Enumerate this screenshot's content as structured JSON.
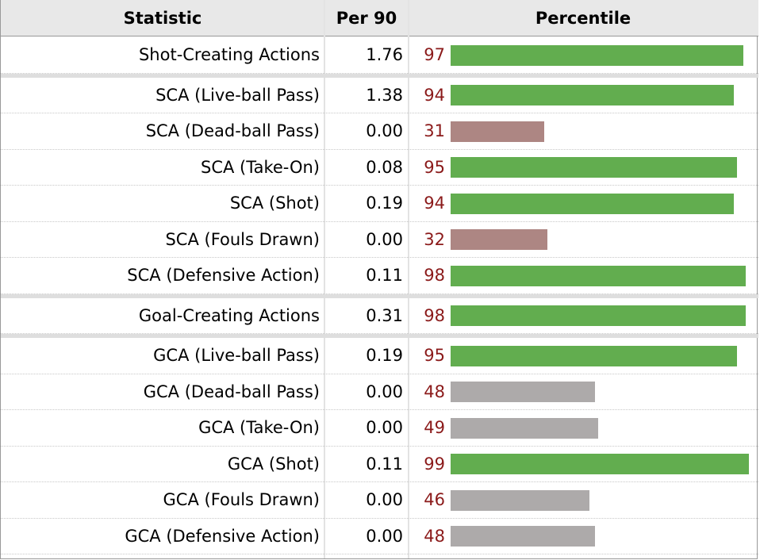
{
  "chart_data": {
    "type": "table",
    "columns": [
      "Statistic",
      "Per 90",
      "Percentile"
    ],
    "groups": [
      {
        "rows": [
          {
            "statistic": "Shot-Creating Actions",
            "per90": "1.76",
            "percentile": 97
          }
        ]
      },
      {
        "rows": [
          {
            "statistic": "SCA (Live-ball Pass)",
            "per90": "1.38",
            "percentile": 94
          },
          {
            "statistic": "SCA (Dead-ball Pass)",
            "per90": "0.00",
            "percentile": 31
          },
          {
            "statistic": "SCA (Take-On)",
            "per90": "0.08",
            "percentile": 95
          },
          {
            "statistic": "SCA (Shot)",
            "per90": "0.19",
            "percentile": 94
          },
          {
            "statistic": "SCA (Fouls Drawn)",
            "per90": "0.00",
            "percentile": 32
          },
          {
            "statistic": "SCA (Defensive Action)",
            "per90": "0.11",
            "percentile": 98
          }
        ]
      },
      {
        "rows": [
          {
            "statistic": "Goal-Creating Actions",
            "per90": "0.31",
            "percentile": 98
          }
        ]
      },
      {
        "rows": [
          {
            "statistic": "GCA (Live-ball Pass)",
            "per90": "0.19",
            "percentile": 95
          },
          {
            "statistic": "GCA (Dead-ball Pass)",
            "per90": "0.00",
            "percentile": 48
          },
          {
            "statistic": "GCA (Take-On)",
            "per90": "0.00",
            "percentile": 49
          },
          {
            "statistic": "GCA (Shot)",
            "per90": "0.11",
            "percentile": 99
          },
          {
            "statistic": "GCA (Fouls Drawn)",
            "per90": "0.00",
            "percentile": 46
          },
          {
            "statistic": "GCA (Defensive Action)",
            "per90": "0.00",
            "percentile": 48
          }
        ]
      }
    ],
    "percentile_range": [
      0,
      100
    ],
    "colors": {
      "high": "#62ad4f",
      "mid": "#adaaaa",
      "low": "#ad8683",
      "percentile_text": "#8b1a1a"
    }
  }
}
